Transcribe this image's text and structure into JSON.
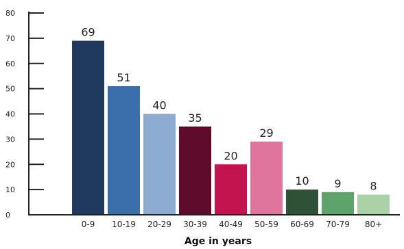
{
  "chart_data": {
    "type": "bar",
    "categories": [
      "0-9",
      "10-19",
      "20-29",
      "30-39",
      "40-49",
      "50-59",
      "60-69",
      "70-79",
      "80+"
    ],
    "values": [
      69,
      51,
      40,
      35,
      20,
      29,
      10,
      9,
      8
    ],
    "data_labels": [
      "69",
      "51",
      "40",
      "35",
      "20",
      "29",
      "10",
      "9",
      "8"
    ],
    "colors": [
      "#1f3a5e",
      "#3a6fac",
      "#8eabd1",
      "#5e0c2a",
      "#c2144e",
      "#e0759c",
      "#2f5236",
      "#5ea46a",
      "#a9d1a6"
    ],
    "yticks": [
      "0",
      "10",
      "20",
      "30",
      "40",
      "50",
      "60",
      "70",
      "80"
    ],
    "ylim": [
      0,
      80
    ],
    "xlabel": "Age in years",
    "ylabel": "",
    "title": "",
    "grid": false,
    "legend": "none"
  }
}
